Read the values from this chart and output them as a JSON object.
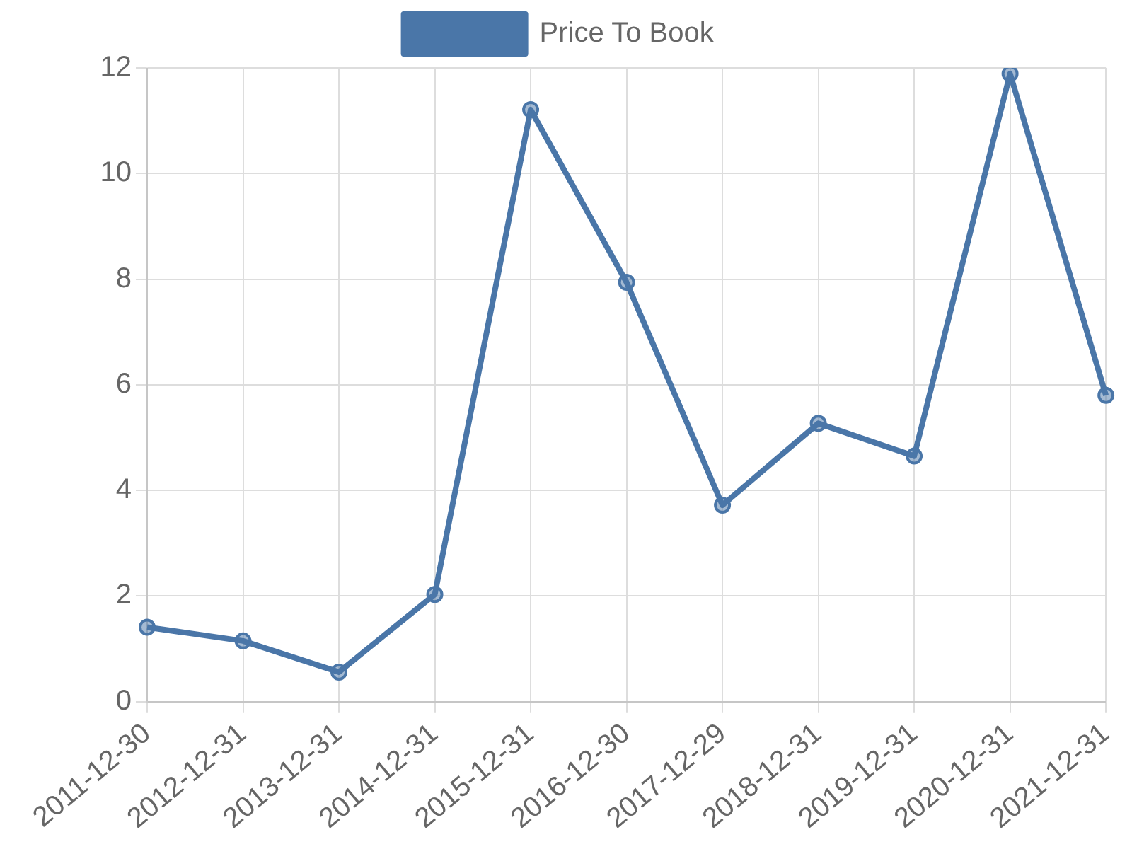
{
  "chart_data": {
    "type": "line",
    "categories": [
      "2011-12-30",
      "2012-12-31",
      "2013-12-31",
      "2014-12-31",
      "2015-12-31",
      "2016-12-30",
      "2017-12-29",
      "2018-12-31",
      "2019-12-31",
      "2020-12-31",
      "2021-12-31"
    ],
    "series": [
      {
        "name": "Price To Book",
        "color": "#4a76a8",
        "values": [
          1.41,
          1.15,
          0.56,
          2.03,
          11.21,
          7.94,
          3.72,
          5.27,
          4.65,
          11.89,
          5.8
        ]
      }
    ],
    "ylim": [
      0,
      12
    ],
    "yticks": [
      0,
      2,
      4,
      6,
      8,
      10,
      12
    ],
    "grid": true,
    "legend": "top",
    "marker": "circle",
    "line_style": "solid"
  }
}
